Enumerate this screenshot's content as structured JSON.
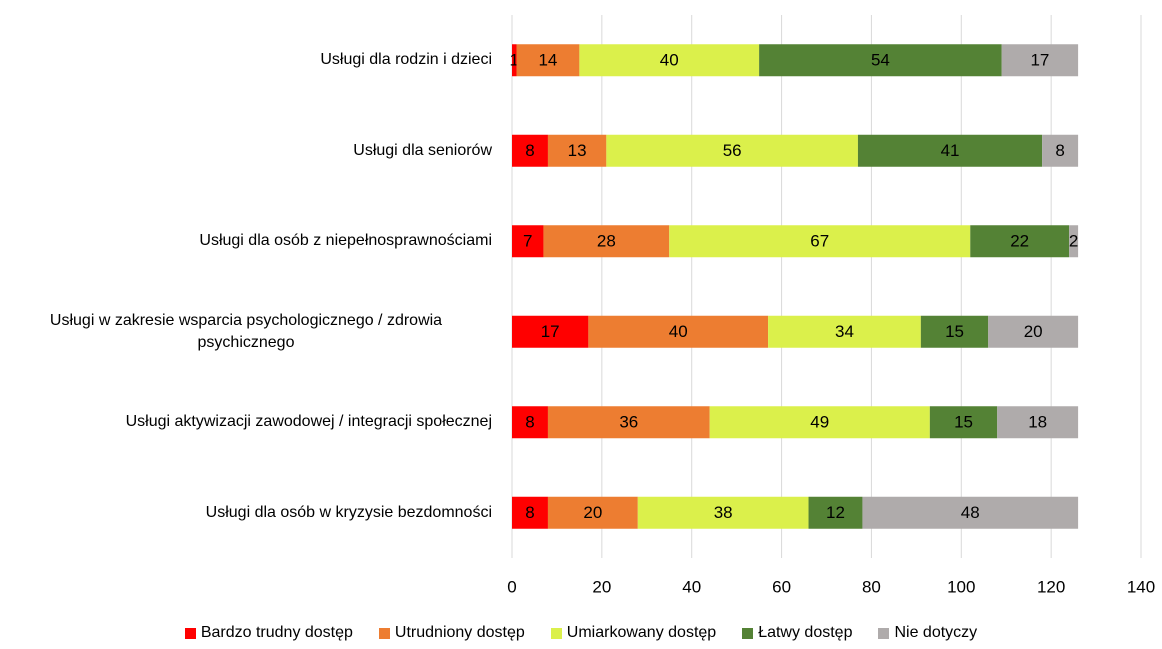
{
  "chart_data": {
    "type": "stacked-barh",
    "categories": [
      "Usługi dla rodzin i dzieci",
      "Usługi dla seniorów",
      "Usługi dla osób z niepełnosprawnościami",
      "Usługi w zakresie wsparcia psychologicznego / zdrowia psychicznego",
      "Usługi aktywizacji zawodowej / integracji społecznej",
      "Usługi dla osób w kryzysie bezdomności"
    ],
    "series": [
      {
        "name": "Bardzo trudny dostęp",
        "color": "#ff0000",
        "values": [
          1,
          8,
          7,
          17,
          8,
          8
        ]
      },
      {
        "name": "Utrudniony dostęp",
        "color": "#ed7d31",
        "values": [
          14,
          13,
          28,
          40,
          36,
          20
        ]
      },
      {
        "name": "Umiarkowany dostęp",
        "color": "#dbf04b",
        "values": [
          40,
          56,
          67,
          34,
          49,
          38
        ]
      },
      {
        "name": "Łatwy dostęp",
        "color": "#548235",
        "values": [
          54,
          41,
          22,
          15,
          15,
          12
        ]
      },
      {
        "name": "Nie dotyczy",
        "color": "#afabab",
        "values": [
          17,
          8,
          2,
          20,
          18,
          48
        ]
      }
    ],
    "xlim": [
      0,
      140
    ],
    "xticks": [
      0,
      20,
      40,
      60,
      80,
      100,
      120,
      140
    ],
    "grid": true,
    "legend": "bottom"
  }
}
